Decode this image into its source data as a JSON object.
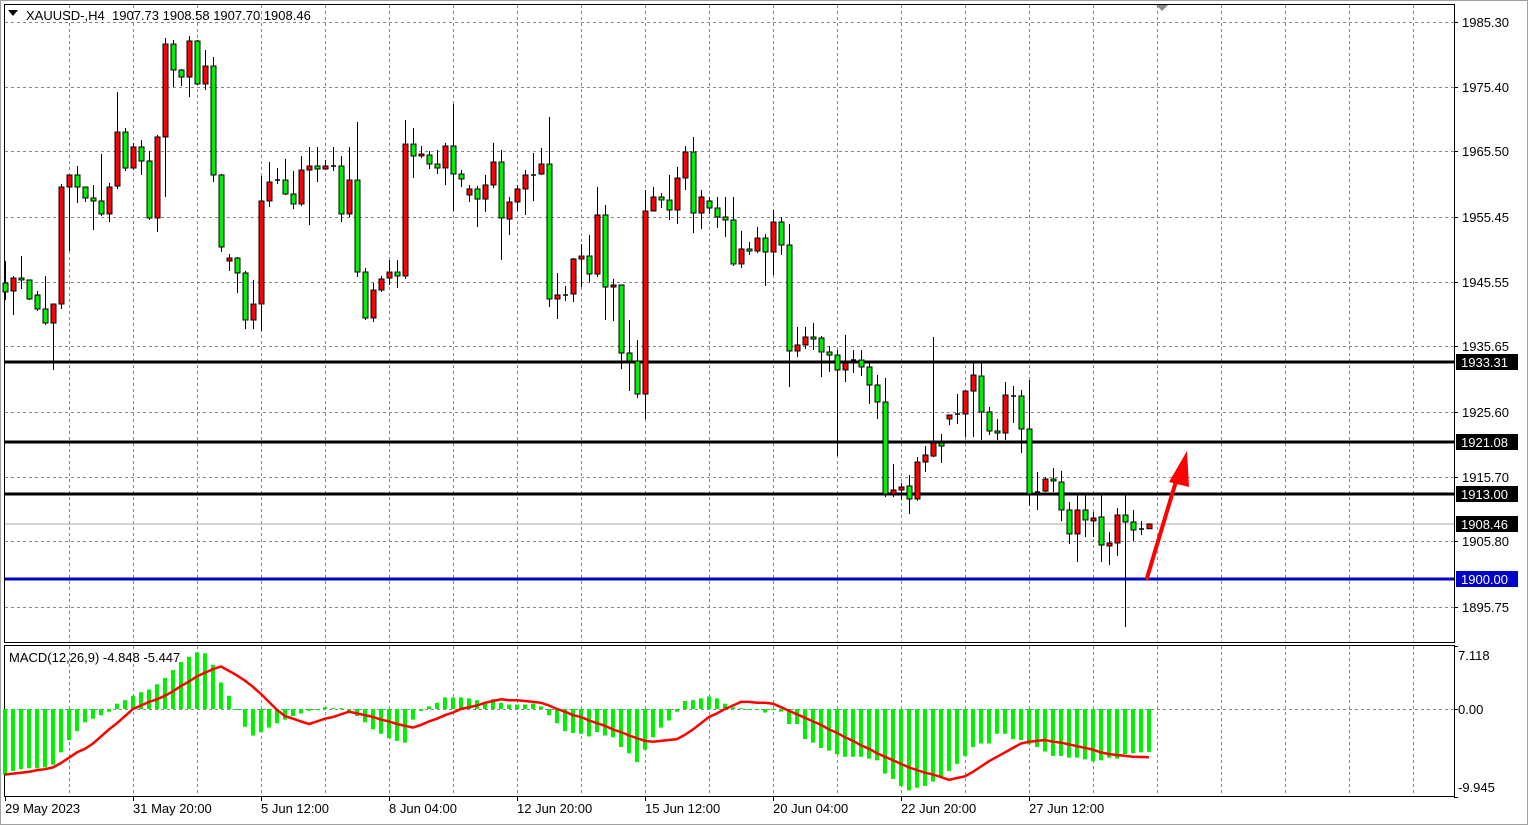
{
  "header": {
    "menu_icon": "triangle-down-icon",
    "symbol_timeframe": "XAUUSD-,H4",
    "ohlc_text": "1907.73 1908.58 1907.70 1908.46"
  },
  "macd_header": {
    "label": "MACD(12,26,9) -4.848 -5.447"
  },
  "colors": {
    "bull_body": "#ff0000",
    "bear_body": "#00ee00",
    "outline": "#000000",
    "grid": "#7d8a96",
    "level_line": "#000000",
    "support_line": "#0000cc",
    "bid_line": "#a0a8b0",
    "macd_hist": "#00ee00",
    "macd_signal": "#ff0000",
    "arrow": "#ff0000"
  },
  "chart_data": [
    {
      "type": "candlestick",
      "symbol": "XAUUSD-",
      "timeframe": "H4",
      "x_tick_labels": [
        "29 May 2023",
        "31 May 20:00",
        "5 Jun 12:00",
        "8 Jun 04:00",
        "12 Jun 20:00",
        "15 Jun 12:00",
        "20 Jun 04:00",
        "22 Jun 20:00",
        "27 Jun 12:00"
      ],
      "y_ticks": [
        "1985.30",
        "1975.40",
        "1965.50",
        "1955.45",
        "1945.55",
        "1935.65",
        "1925.60",
        "1915.70",
        "1905.80",
        "1895.75"
      ],
      "ylim": [
        1891.6,
        1989.4
      ],
      "grid": true,
      "horizontal_levels": [
        {
          "price": "1933.31",
          "style": "level"
        },
        {
          "price": "1921.08",
          "style": "level"
        },
        {
          "price": "1913.00",
          "style": "level"
        },
        {
          "price": "1908.46",
          "style": "bid"
        },
        {
          "price": "1900.00",
          "style": "support"
        }
      ],
      "ohlc_fields": [
        "open",
        "high",
        "low",
        "close"
      ],
      "ohlc": [
        [
          1945.35,
          1948.71,
          1942.74,
          1943.97
        ],
        [
          1944.12,
          1946.42,
          1940.45,
          1946.11
        ],
        [
          1946.11,
          1949.48,
          1944.43,
          1945.81
        ],
        [
          1945.81,
          1945.81,
          1942.74,
          1942.9
        ],
        [
          1943.51,
          1944.12,
          1941.06,
          1941.37
        ],
        [
          1941.37,
          1946.42,
          1938.92,
          1939.22
        ],
        [
          1939.22,
          1942.13,
          1932.03,
          1942.13
        ],
        [
          1942.13,
          1960.5,
          1941.37,
          1960.04
        ],
        [
          1960.04,
          1961.88,
          1950.24,
          1961.88
        ],
        [
          1961.88,
          1963.26,
          1957.59,
          1960.04
        ],
        [
          1960.04,
          1960.04,
          1957.75,
          1958.36
        ],
        [
          1958.36,
          1960.35,
          1953.46,
          1957.9
        ],
        [
          1957.9,
          1965.09,
          1955.6,
          1955.91
        ],
        [
          1955.91,
          1960.65,
          1954.68,
          1960.04
        ],
        [
          1960.19,
          1974.58,
          1959.74,
          1968.46
        ],
        [
          1968.46,
          1969.07,
          1962.49,
          1962.95
        ],
        [
          1962.95,
          1966.78,
          1962.64,
          1966.17
        ],
        [
          1966.17,
          1967.24,
          1961.88,
          1964.02
        ],
        [
          1964.02,
          1965.55,
          1954.99,
          1955.3
        ],
        [
          1955.3,
          1968.0,
          1953.15,
          1967.7
        ],
        [
          1967.7,
          1982.85,
          1958.51,
          1981.93
        ],
        [
          1981.93,
          1982.54,
          1975.35,
          1977.95
        ],
        [
          1977.95,
          1978.11,
          1975.5,
          1976.88
        ],
        [
          1976.88,
          1983.16,
          1973.82,
          1982.39
        ],
        [
          1982.39,
          1982.54,
          1975.66,
          1975.81
        ],
        [
          1975.81,
          1981.01,
          1974.89,
          1978.56
        ],
        [
          1978.56,
          1979.94,
          1960.81,
          1961.88
        ],
        [
          1961.88,
          1962.03,
          1950.09,
          1950.86
        ],
        [
          1948.71,
          1949.79,
          1947.18,
          1949.17
        ],
        [
          1949.17,
          1949.33,
          1943.82,
          1946.88
        ],
        [
          1946.88,
          1947.18,
          1938.3,
          1939.68
        ],
        [
          1939.68,
          1945.81,
          1938.3,
          1942.13
        ],
        [
          1942.13,
          1961.73,
          1938.0,
          1957.9
        ],
        [
          1957.9,
          1963.87,
          1956.98,
          1960.81
        ],
        [
          1961.11,
          1962.95,
          1960.5,
          1960.96
        ],
        [
          1961.11,
          1964.33,
          1958.82,
          1958.97
        ],
        [
          1958.97,
          1962.49,
          1956.67,
          1957.44
        ],
        [
          1957.44,
          1964.79,
          1957.13,
          1962.64
        ],
        [
          1962.64,
          1966.17,
          1954.22,
          1963.26
        ],
        [
          1963.26,
          1966.17,
          1960.81,
          1962.8
        ],
        [
          1962.8,
          1964.17,
          1962.64,
          1963.26
        ],
        [
          1963.26,
          1966.17,
          1962.49,
          1963.26
        ],
        [
          1963.26,
          1964.79,
          1954.68,
          1955.91
        ],
        [
          1955.91,
          1966.17,
          1955.45,
          1961.11
        ],
        [
          1961.11,
          1969.99,
          1946.26,
          1947.03
        ],
        [
          1947.03,
          1947.64,
          1939.68,
          1939.99
        ],
        [
          1939.99,
          1945.35,
          1939.38,
          1944.27
        ],
        [
          1944.27,
          1946.42,
          1943.97,
          1945.96
        ],
        [
          1946.11,
          1948.87,
          1945.04,
          1947.03
        ],
        [
          1947.03,
          1948.87,
          1944.58,
          1946.42
        ],
        [
          1946.42,
          1970.3,
          1945.96,
          1966.62
        ],
        [
          1966.62,
          1969.07,
          1961.42,
          1964.79
        ],
        [
          1964.79,
          1966.32,
          1964.48,
          1965.09
        ],
        [
          1964.94,
          1965.55,
          1962.8,
          1963.56
        ],
        [
          1963.56,
          1965.71,
          1962.03,
          1962.95
        ],
        [
          1962.95,
          1966.78,
          1960.35,
          1966.32
        ],
        [
          1966.32,
          1972.75,
          1956.37,
          1962.03
        ],
        [
          1962.03,
          1962.64,
          1960.04,
          1961.27
        ],
        [
          1958.82,
          1960.35,
          1957.75,
          1959.74
        ],
        [
          1959.74,
          1960.19,
          1953.92,
          1958.2
        ],
        [
          1958.2,
          1961.88,
          1956.21,
          1960.35
        ],
        [
          1960.35,
          1966.78,
          1959.89,
          1963.87
        ],
        [
          1963.87,
          1965.71,
          1948.87,
          1955.3
        ],
        [
          1955.14,
          1958.51,
          1952.69,
          1957.75
        ],
        [
          1957.75,
          1960.35,
          1956.37,
          1959.74
        ],
        [
          1959.74,
          1962.64,
          1955.76,
          1961.88
        ],
        [
          1961.88,
          1965.25,
          1957.9,
          1961.88
        ],
        [
          1962.03,
          1966.01,
          1961.88,
          1963.56
        ],
        [
          1963.56,
          1970.76,
          1941.67,
          1942.9
        ],
        [
          1942.9,
          1946.88,
          1939.84,
          1943.51
        ],
        [
          1943.51,
          1944.89,
          1942.59,
          1943.51
        ],
        [
          1943.66,
          1949.17,
          1942.44,
          1949.02
        ],
        [
          1949.02,
          1951.32,
          1944.73,
          1949.48
        ],
        [
          1949.48,
          1952.69,
          1945.5,
          1946.72
        ],
        [
          1946.72,
          1960.04,
          1946.26,
          1955.76
        ],
        [
          1955.76,
          1957.29,
          1939.68,
          1944.73
        ],
        [
          1944.73,
          1945.96,
          1939.53,
          1945.04
        ],
        [
          1945.04,
          1945.04,
          1932.18,
          1934.63
        ],
        [
          1934.63,
          1939.68,
          1928.81,
          1933.41
        ],
        [
          1933.41,
          1936.62,
          1927.74,
          1928.35
        ],
        [
          1928.35,
          1959.58,
          1924.53,
          1956.37
        ],
        [
          1956.37,
          1960.04,
          1956.37,
          1958.51
        ],
        [
          1958.51,
          1959.12,
          1956.83,
          1958.05
        ],
        [
          1958.05,
          1961.88,
          1954.99,
          1956.52
        ],
        [
          1956.52,
          1963.1,
          1954.38,
          1961.42
        ],
        [
          1961.42,
          1966.32,
          1959.58,
          1965.4
        ],
        [
          1965.4,
          1967.7,
          1953.0,
          1956.06
        ],
        [
          1956.06,
          1959.58,
          1953.61,
          1958.51
        ],
        [
          1957.9,
          1958.51,
          1955.91,
          1956.83
        ],
        [
          1956.83,
          1958.51,
          1953.77,
          1955.45
        ],
        [
          1955.45,
          1958.51,
          1952.39,
          1954.99
        ],
        [
          1954.99,
          1958.51,
          1947.95,
          1948.26
        ],
        [
          1948.26,
          1953.31,
          1947.64,
          1950.55
        ],
        [
          1950.55,
          1951.62,
          1949.63,
          1950.24
        ],
        [
          1950.24,
          1953.92,
          1949.9,
          1952.23
        ],
        [
          1952.23,
          1952.85,
          1944.89,
          1950.09
        ],
        [
          1950.09,
          1956.52,
          1946.57,
          1954.68
        ],
        [
          1954.68,
          1955.45,
          1949.63,
          1951.16
        ],
        [
          1951.16,
          1954.38,
          1929.43,
          1934.94
        ],
        [
          1934.94,
          1938.61,
          1934.02,
          1935.86
        ],
        [
          1935.86,
          1938.61,
          1935.24,
          1937.08
        ],
        [
          1937.08,
          1939.22,
          1935.09,
          1936.77
        ],
        [
          1936.93,
          1937.23,
          1930.96,
          1934.78
        ],
        [
          1934.78,
          1935.7,
          1931.72,
          1934.32
        ],
        [
          1934.32,
          1935.09,
          1918.86,
          1932.03
        ],
        [
          1932.03,
          1937.39,
          1930.19,
          1933.1
        ],
        [
          1933.56,
          1935.09,
          1931.57,
          1933.56
        ],
        [
          1933.56,
          1935.09,
          1931.11,
          1932.49
        ],
        [
          1932.49,
          1933.1,
          1926.82,
          1929.73
        ],
        [
          1929.73,
          1931.26,
          1924.53,
          1927.13
        ],
        [
          1927.13,
          1930.8,
          1912.59,
          1913.05
        ],
        [
          1913.05,
          1917.64,
          1912.59,
          1913.66
        ],
        [
          1913.66,
          1914.73,
          1912.13,
          1914.12
        ],
        [
          1914.27,
          1915.95,
          1909.98,
          1912.28
        ],
        [
          1912.28,
          1918.71,
          1911.97,
          1917.94
        ],
        [
          1917.94,
          1920.39,
          1916.41,
          1919.02
        ],
        [
          1918.86,
          1937.08,
          1918.71,
          1920.85
        ],
        [
          1920.85,
          1922.23,
          1917.79,
          1920.39
        ],
        [
          1924.53,
          1925.14,
          1923.61,
          1925.14
        ],
        [
          1925.29,
          1928.35,
          1923.76,
          1925.29
        ],
        [
          1925.29,
          1928.81,
          1921.77,
          1928.81
        ],
        [
          1928.81,
          1933.1,
          1921.77,
          1931.26
        ],
        [
          1931.11,
          1933.1,
          1921.31,
          1925.6
        ],
        [
          1925.6,
          1926.36,
          1922.08,
          1922.69
        ],
        [
          1922.69,
          1924.53,
          1921.31,
          1922.38
        ],
        [
          1922.38,
          1930.19,
          1921.31,
          1928.2
        ],
        [
          1928.05,
          1929.58,
          1923.91,
          1928.05
        ],
        [
          1928.05,
          1928.97,
          1919.32,
          1922.99
        ],
        [
          1922.99,
          1930.5,
          1911.21,
          1913.05
        ],
        [
          1913.35,
          1916.41,
          1910.6,
          1913.35
        ],
        [
          1913.5,
          1915.65,
          1913.35,
          1915.34
        ],
        [
          1915.34,
          1917.03,
          1913.35,
          1915.04
        ],
        [
          1914.88,
          1916.57,
          1908.92,
          1910.6
        ],
        [
          1910.6,
          1911.82,
          1905.39,
          1906.93
        ],
        [
          1906.93,
          1912.89,
          1902.64,
          1910.6
        ],
        [
          1910.6,
          1912.89,
          1906.47,
          1909.07
        ],
        [
          1908.92,
          1910.29,
          1906.47,
          1909.37
        ],
        [
          1909.53,
          1912.89,
          1902.64,
          1905.24
        ],
        [
          1905.09,
          1907.23,
          1902.18,
          1905.55
        ],
        [
          1905.55,
          1910.9,
          1903.56,
          1909.83
        ],
        [
          1909.83,
          1912.89,
          1892.69,
          1908.76
        ],
        [
          1908.76,
          1910.6,
          1905.85,
          1907.54
        ],
        [
          1907.69,
          1908.92,
          1906.77,
          1907.69
        ],
        [
          1907.73,
          1908.58,
          1907.7,
          1908.46
        ]
      ]
    },
    {
      "type": "bar+line",
      "title": "MACD(12,26,9)",
      "current_values": [
        "-4.848",
        "-5.447"
      ],
      "y_ticks": [
        "7.118",
        "0.00",
        "-9.945"
      ],
      "ylim": [
        -9.945,
        7.118
      ],
      "histogram": [
        -7.4,
        -7.0,
        -6.8,
        -6.7,
        -6.7,
        -6.6,
        -6.3,
        -4.9,
        -3.5,
        -2.5,
        -1.5,
        -1.1,
        -0.7,
        -0.3,
        0.6,
        1.0,
        1.5,
        1.9,
        2.2,
        2.8,
        3.5,
        4.4,
        5.3,
        5.9,
        6.4,
        6.3,
        5.0,
        3.0,
        1.5,
        -0.1,
        -2.0,
        -3.0,
        -2.6,
        -2.1,
        -1.6,
        -1.2,
        -0.8,
        -0.5,
        -0.2,
        0.0,
        0.2,
        0.1,
        0.1,
        -0.3,
        -0.8,
        -1.5,
        -2.3,
        -2.8,
        -3.3,
        -3.6,
        -3.8,
        -1.2,
        -0.2,
        0.3,
        0.7,
        1.3,
        1.3,
        1.3,
        1.2,
        1.0,
        0.7,
        1.1,
        0.7,
        0.5,
        0.5,
        0.5,
        0.6,
        0.3,
        -0.7,
        -1.6,
        -2.5,
        -2.7,
        -2.8,
        -3.1,
        -2.6,
        -3.0,
        -3.2,
        -4.3,
        -5.0,
        -6.0,
        -4.6,
        -3.2,
        -2.1,
        -1.3,
        -0.3,
        0.9,
        1.0,
        1.2,
        1.4,
        1.2,
        0.6,
        0.2,
        0.1,
        -0.1,
        -0.1,
        -0.4,
        -0.1,
        -0.3,
        -1.7,
        -1.7,
        -3.4,
        -3.8,
        -4.4,
        -4.7,
        -5.1,
        -5.4,
        -5.4,
        -5.4,
        -5.6,
        -5.8,
        -7.3,
        -7.9,
        -8.7,
        -9.2,
        -8.9,
        -8.7,
        -8.2,
        -7.7,
        -7.0,
        -6.2,
        -5.3,
        -4.3,
        -3.9,
        -3.9,
        -2.8,
        -2.8,
        -3.4,
        -3.5,
        -4.0,
        -4.3,
        -4.8,
        -5.3,
        -5.3,
        -5.5,
        -5.5,
        -5.7,
        -5.9,
        -5.8,
        -5.5,
        -5.6,
        -5.1,
        -5.0,
        -4.9,
        -4.848
      ],
      "signal": [
        -7.4,
        -7.3,
        -7.2,
        -7.1,
        -6.9,
        -6.8,
        -6.6,
        -6.1,
        -5.5,
        -4.9,
        -4.5,
        -3.9,
        -3.1,
        -2.3,
        -1.6,
        -0.8,
        0.0,
        0.4,
        0.8,
        1.1,
        1.5,
        2.0,
        2.6,
        3.1,
        3.7,
        4.1,
        4.5,
        4.8,
        4.3,
        3.8,
        3.2,
        2.5,
        1.7,
        0.8,
        -0.1,
        -0.8,
        -1.1,
        -1.4,
        -1.7,
        -1.4,
        -1.1,
        -0.9,
        -0.6,
        -0.3,
        -0.5,
        -0.7,
        -0.9,
        -1.2,
        -1.4,
        -1.7,
        -1.9,
        -2.1,
        -1.8,
        -1.4,
        -1.1,
        -0.7,
        -0.4,
        0.0,
        0.2,
        0.4,
        0.7,
        0.9,
        1.1,
        1.0,
        1.0,
        0.9,
        0.8,
        0.7,
        0.4,
        0.0,
        -0.3,
        -0.7,
        -0.9,
        -1.3,
        -1.6,
        -1.9,
        -2.3,
        -2.6,
        -3.0,
        -3.3,
        -3.6,
        -3.7,
        -3.6,
        -3.5,
        -3.4,
        -2.9,
        -2.3,
        -1.6,
        -0.9,
        -0.5,
        0.0,
        0.4,
        0.8,
        0.8,
        0.7,
        0.7,
        0.6,
        0.2,
        -0.2,
        -0.6,
        -1.0,
        -1.4,
        -1.8,
        -2.3,
        -2.7,
        -3.2,
        -3.6,
        -4.1,
        -4.5,
        -5.0,
        -5.4,
        -5.8,
        -6.2,
        -6.6,
        -6.9,
        -7.2,
        -7.4,
        -7.7,
        -8.0,
        -7.8,
        -7.6,
        -7.1,
        -6.5,
        -5.9,
        -5.4,
        -4.9,
        -4.4,
        -3.9,
        -3.7,
        -3.6,
        -3.5,
        -3.7,
        -3.8,
        -4.0,
        -4.2,
        -4.4,
        -4.6,
        -4.9,
        -5.1,
        -5.2,
        -5.3,
        -5.4,
        -5.42,
        -5.447
      ]
    }
  ]
}
